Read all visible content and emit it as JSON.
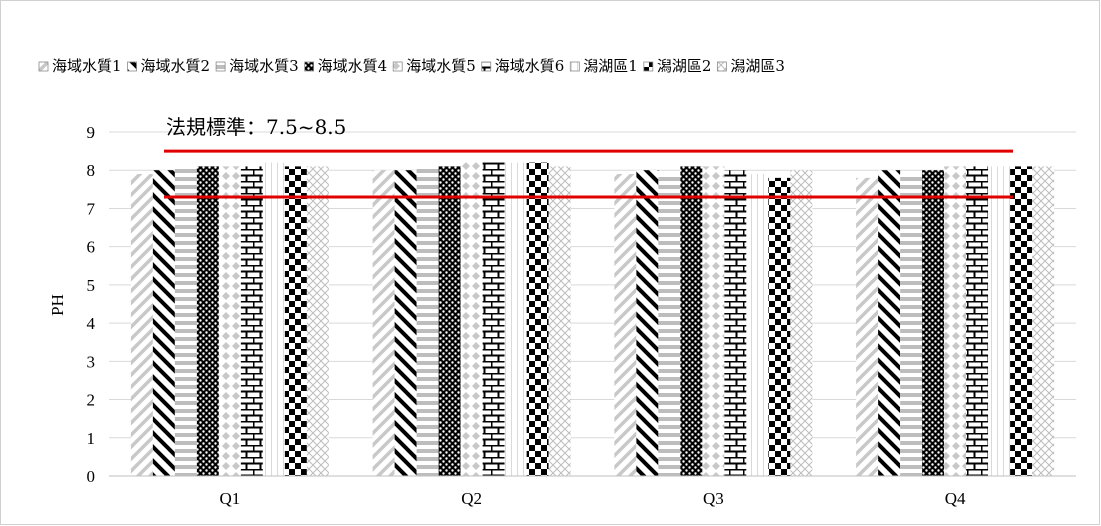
{
  "chart_data": {
    "type": "bar",
    "categories": [
      "Q1",
      "Q2",
      "Q3",
      "Q4"
    ],
    "ylabel": "PH",
    "ylim": [
      0,
      9
    ],
    "yticks": [
      0,
      1,
      2,
      3,
      4,
      5,
      6,
      7,
      8,
      9
    ],
    "grid": true,
    "legend_position": "top",
    "series": [
      {
        "name": "海域水質1",
        "values": [
          7.9,
          8.0,
          7.9,
          7.8
        ],
        "pattern": "diagonal-light"
      },
      {
        "name": "海域水質2",
        "values": [
          8.0,
          8.0,
          8.0,
          8.0
        ],
        "pattern": "diagonal-dark"
      },
      {
        "name": "海域水質3",
        "values": [
          8.1,
          8.1,
          7.9,
          7.9
        ],
        "pattern": "horizontal"
      },
      {
        "name": "海域水質4",
        "values": [
          8.1,
          8.1,
          8.1,
          8.0
        ],
        "pattern": "dots"
      },
      {
        "name": "海域水質5",
        "values": [
          8.1,
          8.2,
          8.1,
          8.1
        ],
        "pattern": "diamonds"
      },
      {
        "name": "海域水質6",
        "values": [
          8.1,
          8.2,
          8.0,
          8.1
        ],
        "pattern": "brick"
      },
      {
        "name": "潟湖區1",
        "values": [
          8.2,
          8.2,
          7.9,
          8.1
        ],
        "pattern": "vertical-light"
      },
      {
        "name": "潟湖區2",
        "values": [
          8.1,
          8.2,
          7.8,
          8.1
        ],
        "pattern": "checker"
      },
      {
        "name": "潟湖區3",
        "values": [
          8.1,
          8.1,
          8.0,
          8.1
        ],
        "pattern": "crosshatch"
      }
    ],
    "reference_lines": [
      {
        "value": 8.5,
        "color": "#e00000"
      },
      {
        "value": 7.3,
        "color": "#e00000"
      }
    ],
    "annotation": "法規標準：7.5~8.5"
  }
}
